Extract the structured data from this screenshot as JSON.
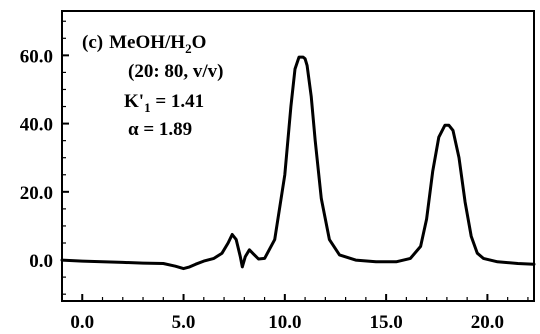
{
  "chart_data": {
    "type": "line",
    "title": "",
    "xlabel": "",
    "ylabel": "",
    "xlim": [
      -1.0,
      22.3
    ],
    "ylim": [
      -12,
      73
    ],
    "grid": false,
    "x_ticks": [
      {
        "value": 0,
        "label": "0.0"
      },
      {
        "value": 5,
        "label": "5.0"
      },
      {
        "value": 10,
        "label": "10.0"
      },
      {
        "value": 15,
        "label": "15.0"
      },
      {
        "value": 20,
        "label": "20.0"
      }
    ],
    "y_ticks": [
      {
        "value": 0,
        "label": "0.0"
      },
      {
        "value": 20,
        "label": "20.0"
      },
      {
        "value": 40,
        "label": "40.0"
      },
      {
        "value": 60,
        "label": "60.0"
      }
    ],
    "annotation": {
      "panel": "(c)",
      "solvent": "MeOH/H",
      "solvent_sub": "2",
      "solvent_end": "O",
      "ratio": "(20: 80, v/v)",
      "k_prefix": "K'",
      "k_sub": "1",
      "k_value": " = 1.41",
      "alpha": "α = 1.89"
    },
    "series": [
      {
        "x": [
          -1.0,
          0,
          1,
          2,
          3,
          4,
          4.6,
          5.0,
          5.3,
          5.6,
          6.0,
          6.5,
          6.9,
          7.2,
          7.4,
          7.6,
          7.8,
          7.9,
          8.05,
          8.25,
          8.45,
          8.7,
          9.0,
          9.5,
          10.0,
          10.3,
          10.5,
          10.7,
          10.9,
          11.0,
          11.1,
          11.3,
          11.5,
          11.8,
          12.2,
          12.7,
          13.5,
          14.5,
          15.5,
          16.2,
          16.7,
          17.0,
          17.3,
          17.6,
          17.9,
          18.1,
          18.3,
          18.6,
          18.9,
          19.2,
          19.5,
          19.8,
          20.5,
          21.5,
          22.3
        ],
        "y": [
          0,
          -0.3,
          -0.5,
          -0.7,
          -0.9,
          -1.0,
          -1.8,
          -2.5,
          -2.0,
          -1.2,
          -0.3,
          0.5,
          2.0,
          5.0,
          7.5,
          6.0,
          1.0,
          -2.0,
          1.0,
          3.0,
          1.8,
          0.3,
          0.5,
          6.0,
          25.0,
          45.0,
          56.0,
          59.5,
          59.5,
          59.0,
          57.0,
          48.0,
          35.0,
          18.0,
          6.0,
          1.5,
          0.0,
          -0.5,
          -0.5,
          0.5,
          4.0,
          12.0,
          26.0,
          36.0,
          39.5,
          39.5,
          38.0,
          30.0,
          17.0,
          7.0,
          2.0,
          0.5,
          -0.5,
          -1.0,
          -1.2
        ]
      }
    ]
  }
}
